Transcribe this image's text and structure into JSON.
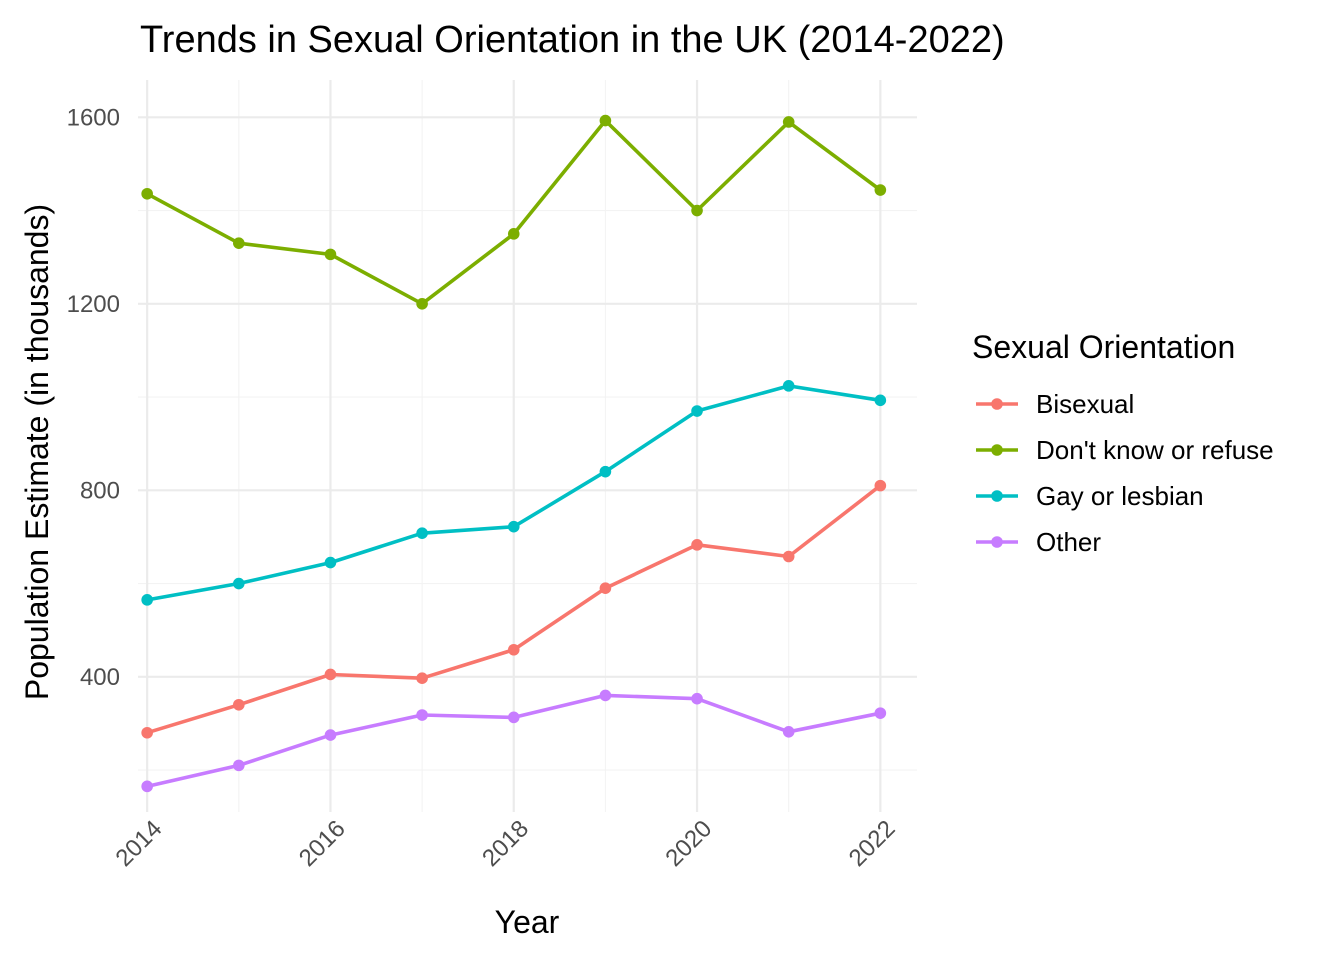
{
  "chart_data": {
    "type": "line",
    "title": "Trends in Sexual Orientation in the UK (2014-2022)",
    "xlabel": "Year",
    "ylabel": "Population Estimate (in thousands)",
    "x": [
      2014,
      2015,
      2016,
      2017,
      2018,
      2019,
      2020,
      2021,
      2022
    ],
    "x_ticks": [
      "2014",
      "2016",
      "2018",
      "2020",
      "2022"
    ],
    "y_ticks": [
      "400",
      "800",
      "1200",
      "1600"
    ],
    "xlim": [
      2013.9,
      2022.4
    ],
    "ylim": [
      110,
      1680
    ],
    "grid": true,
    "legend": {
      "title": "Sexual Orientation",
      "position": "right"
    },
    "series": [
      {
        "name": "Bisexual",
        "color": "#F8766D",
        "values": [
          280,
          340,
          405,
          397,
          458,
          590,
          683,
          658,
          810
        ]
      },
      {
        "name": "Don't know or refuse",
        "color": "#7CAE00",
        "values": [
          1436,
          1330,
          1306,
          1200,
          1350,
          1593,
          1400,
          1590,
          1444
        ]
      },
      {
        "name": "Gay or lesbian",
        "color": "#00BFC4",
        "values": [
          565,
          600,
          645,
          708,
          722,
          840,
          970,
          1024,
          993
        ]
      },
      {
        "name": "Other",
        "color": "#C77CFF",
        "values": [
          165,
          210,
          275,
          318,
          313,
          360,
          353,
          282,
          322
        ]
      }
    ]
  }
}
